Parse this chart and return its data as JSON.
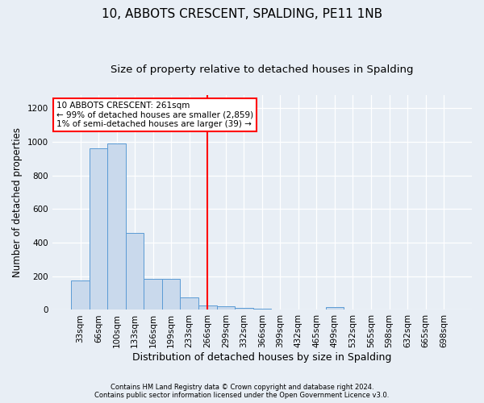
{
  "title1": "10, ABBOTS CRESCENT, SPALDING, PE11 1NB",
  "title2": "Size of property relative to detached houses in Spalding",
  "xlabel": "Distribution of detached houses by size in Spalding",
  "ylabel": "Number of detached properties",
  "footer1": "Contains HM Land Registry data © Crown copyright and database right 2024.",
  "footer2": "Contains public sector information licensed under the Open Government Licence v3.0.",
  "bin_labels": [
    "33sqm",
    "66sqm",
    "100sqm",
    "133sqm",
    "166sqm",
    "199sqm",
    "233sqm",
    "266sqm",
    "299sqm",
    "332sqm",
    "366sqm",
    "399sqm",
    "432sqm",
    "465sqm",
    "499sqm",
    "532sqm",
    "565sqm",
    "598sqm",
    "632sqm",
    "665sqm",
    "698sqm"
  ],
  "bar_values": [
    175,
    960,
    990,
    460,
    185,
    185,
    75,
    25,
    20,
    10,
    5,
    0,
    0,
    0,
    15,
    0,
    0,
    0,
    0,
    0,
    0
  ],
  "bar_color": "#c9d9ec",
  "bar_edge_color": "#5b9bd5",
  "vline_x": 7.0,
  "vline_color": "red",
  "annotation_title": "10 ABBOTS CRESCENT: 261sqm",
  "annotation_line1": "← 99% of detached houses are smaller (2,859)",
  "annotation_line2": "1% of semi-detached houses are larger (39) →",
  "ylim": [
    0,
    1280
  ],
  "yticks": [
    0,
    200,
    400,
    600,
    800,
    1000,
    1200
  ],
  "background_color": "#e8eef5",
  "grid_color": "#ffffff",
  "title1_fontsize": 11,
  "title2_fontsize": 9.5,
  "xlabel_fontsize": 9,
  "ylabel_fontsize": 8.5,
  "tick_fontsize": 7.5,
  "annot_fontsize": 7.5,
  "footer_fontsize": 6
}
